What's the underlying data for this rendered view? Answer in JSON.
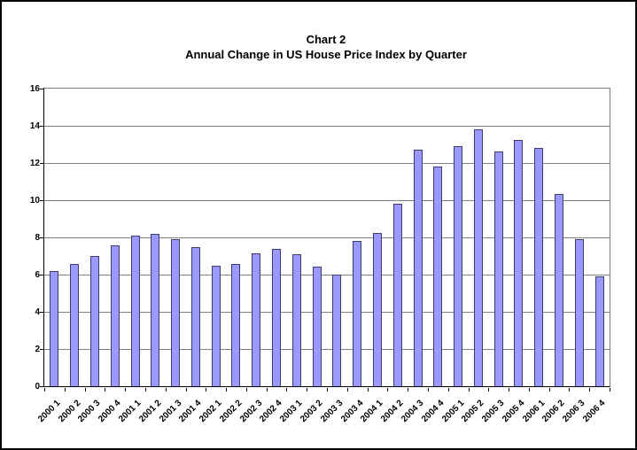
{
  "chart_data": {
    "type": "bar",
    "title": "Chart 2",
    "subtitle": "Annual Change in US House Price Index by Quarter",
    "xlabel": "",
    "ylabel": "",
    "ylim": [
      0,
      16
    ],
    "yticks": [
      0,
      2,
      4,
      6,
      8,
      10,
      12,
      14,
      16
    ],
    "grid": true,
    "legend": "none",
    "categories": [
      "2000 1",
      "2000 2",
      "2000 3",
      "2000 4",
      "2001 1",
      "2001 2",
      "2001 3",
      "2001 4",
      "2002 1",
      "2002 2",
      "2002 3",
      "2002 4",
      "2003 1",
      "2003 2",
      "2003 3",
      "2003 4",
      "2004 1",
      "2004 2",
      "2004 3",
      "2004 4",
      "2005 1",
      "2005 2",
      "2005 3",
      "2005 4",
      "2006 1",
      "2006 2",
      "2006 3",
      "2006 4"
    ],
    "values": [
      6.2,
      6.55,
      7.0,
      7.55,
      8.1,
      8.2,
      7.9,
      7.5,
      6.5,
      6.55,
      7.15,
      7.4,
      7.1,
      6.45,
      6.0,
      7.8,
      8.25,
      9.8,
      12.7,
      11.8,
      12.9,
      13.8,
      12.6,
      13.25,
      12.8,
      10.35,
      7.9,
      5.9
    ],
    "colors": {
      "bar_fill": "#9999FF",
      "bar_border": "#3C3C64",
      "gridline": "#808080",
      "axis": "#000000",
      "text": "#000000",
      "background": "#FFFFFF"
    }
  }
}
